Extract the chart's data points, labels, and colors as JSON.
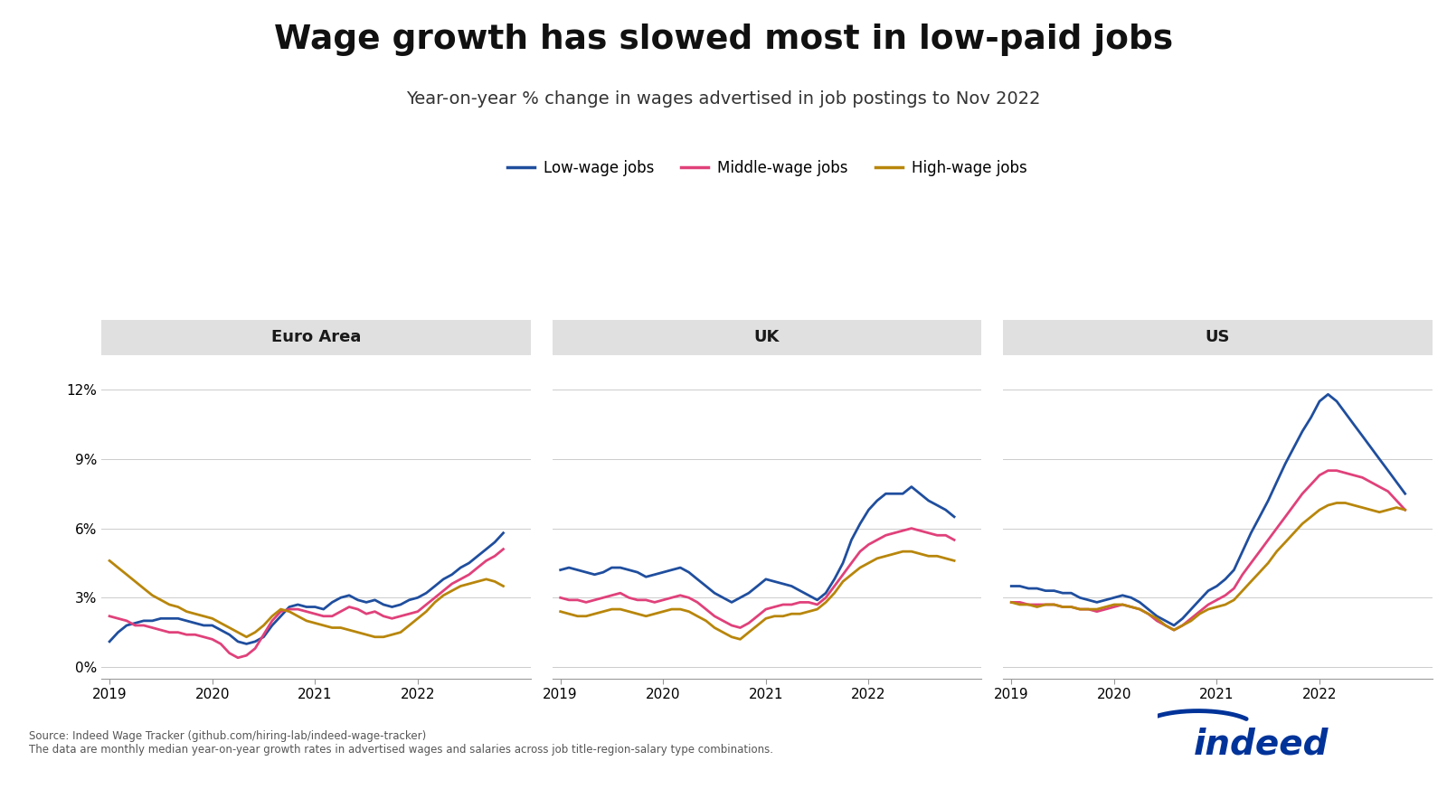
{
  "title": "Wage growth has slowed most in low-paid jobs",
  "subtitle": "Year-on-year % change in wages advertised in job postings to Nov 2022",
  "source_line1": "Source: Indeed Wage Tracker (github.com/hiring-lab/indeed-wage-tracker)",
  "source_line2": "The data are monthly median year-on-year growth rates in advertised wages and salaries across job title-region-salary type combinations.",
  "legend_labels": [
    "Low-wage jobs",
    "Middle-wage jobs",
    "High-wage jobs"
  ],
  "colors": {
    "low": "#1f4e9e",
    "middle": "#e0417a",
    "high": "#b8860b"
  },
  "panels": [
    "Euro Area",
    "UK",
    "US"
  ],
  "ylim": [
    -0.5,
    13.5
  ],
  "yticks": [
    0,
    3,
    6,
    9,
    12
  ],
  "ytick_labels": [
    "0%",
    "3%",
    "6%",
    "9%",
    "12%"
  ],
  "background_color": "#ffffff",
  "panel_header_color": "#e0e0e0",
  "euro_area": {
    "x": [
      2019.0,
      2019.083,
      2019.167,
      2019.25,
      2019.333,
      2019.417,
      2019.5,
      2019.583,
      2019.667,
      2019.75,
      2019.833,
      2019.917,
      2020.0,
      2020.083,
      2020.167,
      2020.25,
      2020.333,
      2020.417,
      2020.5,
      2020.583,
      2020.667,
      2020.75,
      2020.833,
      2020.917,
      2021.0,
      2021.083,
      2021.167,
      2021.25,
      2021.333,
      2021.417,
      2021.5,
      2021.583,
      2021.667,
      2021.75,
      2021.833,
      2021.917,
      2022.0,
      2022.083,
      2022.167,
      2022.25,
      2022.333,
      2022.417,
      2022.5,
      2022.583,
      2022.667,
      2022.75,
      2022.833
    ],
    "low": [
      1.1,
      1.5,
      1.8,
      1.9,
      2.0,
      2.0,
      2.1,
      2.1,
      2.1,
      2.0,
      1.9,
      1.8,
      1.8,
      1.6,
      1.4,
      1.1,
      1.0,
      1.1,
      1.3,
      1.8,
      2.2,
      2.6,
      2.7,
      2.6,
      2.6,
      2.5,
      2.8,
      3.0,
      3.1,
      2.9,
      2.8,
      2.9,
      2.7,
      2.6,
      2.7,
      2.9,
      3.0,
      3.2,
      3.5,
      3.8,
      4.0,
      4.3,
      4.5,
      4.8,
      5.1,
      5.4,
      5.8
    ],
    "middle": [
      2.2,
      2.1,
      2.0,
      1.8,
      1.8,
      1.7,
      1.6,
      1.5,
      1.5,
      1.4,
      1.4,
      1.3,
      1.2,
      1.0,
      0.6,
      0.4,
      0.5,
      0.8,
      1.4,
      2.0,
      2.4,
      2.5,
      2.5,
      2.4,
      2.3,
      2.2,
      2.2,
      2.4,
      2.6,
      2.5,
      2.3,
      2.4,
      2.2,
      2.1,
      2.2,
      2.3,
      2.4,
      2.7,
      3.0,
      3.3,
      3.6,
      3.8,
      4.0,
      4.3,
      4.6,
      4.8,
      5.1
    ],
    "high": [
      4.6,
      4.3,
      4.0,
      3.7,
      3.4,
      3.1,
      2.9,
      2.7,
      2.6,
      2.4,
      2.3,
      2.2,
      2.1,
      1.9,
      1.7,
      1.5,
      1.3,
      1.5,
      1.8,
      2.2,
      2.5,
      2.4,
      2.2,
      2.0,
      1.9,
      1.8,
      1.7,
      1.7,
      1.6,
      1.5,
      1.4,
      1.3,
      1.3,
      1.4,
      1.5,
      1.8,
      2.1,
      2.4,
      2.8,
      3.1,
      3.3,
      3.5,
      3.6,
      3.7,
      3.8,
      3.7,
      3.5
    ]
  },
  "uk": {
    "x": [
      2019.0,
      2019.083,
      2019.167,
      2019.25,
      2019.333,
      2019.417,
      2019.5,
      2019.583,
      2019.667,
      2019.75,
      2019.833,
      2019.917,
      2020.0,
      2020.083,
      2020.167,
      2020.25,
      2020.333,
      2020.417,
      2020.5,
      2020.583,
      2020.667,
      2020.75,
      2020.833,
      2020.917,
      2021.0,
      2021.083,
      2021.167,
      2021.25,
      2021.333,
      2021.417,
      2021.5,
      2021.583,
      2021.667,
      2021.75,
      2021.833,
      2021.917,
      2022.0,
      2022.083,
      2022.167,
      2022.25,
      2022.333,
      2022.417,
      2022.5,
      2022.583,
      2022.667,
      2022.75,
      2022.833
    ],
    "low": [
      4.2,
      4.3,
      4.2,
      4.1,
      4.0,
      4.1,
      4.3,
      4.3,
      4.2,
      4.1,
      3.9,
      4.0,
      4.1,
      4.2,
      4.3,
      4.1,
      3.8,
      3.5,
      3.2,
      3.0,
      2.8,
      3.0,
      3.2,
      3.5,
      3.8,
      3.7,
      3.6,
      3.5,
      3.3,
      3.1,
      2.9,
      3.2,
      3.8,
      4.5,
      5.5,
      6.2,
      6.8,
      7.2,
      7.5,
      7.5,
      7.5,
      7.8,
      7.5,
      7.2,
      7.0,
      6.8,
      6.5
    ],
    "middle": [
      3.0,
      2.9,
      2.9,
      2.8,
      2.9,
      3.0,
      3.1,
      3.2,
      3.0,
      2.9,
      2.9,
      2.8,
      2.9,
      3.0,
      3.1,
      3.0,
      2.8,
      2.5,
      2.2,
      2.0,
      1.8,
      1.7,
      1.9,
      2.2,
      2.5,
      2.6,
      2.7,
      2.7,
      2.8,
      2.8,
      2.7,
      3.0,
      3.5,
      4.0,
      4.5,
      5.0,
      5.3,
      5.5,
      5.7,
      5.8,
      5.9,
      6.0,
      5.9,
      5.8,
      5.7,
      5.7,
      5.5
    ],
    "high": [
      2.4,
      2.3,
      2.2,
      2.2,
      2.3,
      2.4,
      2.5,
      2.5,
      2.4,
      2.3,
      2.2,
      2.3,
      2.4,
      2.5,
      2.5,
      2.4,
      2.2,
      2.0,
      1.7,
      1.5,
      1.3,
      1.2,
      1.5,
      1.8,
      2.1,
      2.2,
      2.2,
      2.3,
      2.3,
      2.4,
      2.5,
      2.8,
      3.2,
      3.7,
      4.0,
      4.3,
      4.5,
      4.7,
      4.8,
      4.9,
      5.0,
      5.0,
      4.9,
      4.8,
      4.8,
      4.7,
      4.6
    ]
  },
  "us": {
    "x": [
      2019.0,
      2019.083,
      2019.167,
      2019.25,
      2019.333,
      2019.417,
      2019.5,
      2019.583,
      2019.667,
      2019.75,
      2019.833,
      2019.917,
      2020.0,
      2020.083,
      2020.167,
      2020.25,
      2020.333,
      2020.417,
      2020.5,
      2020.583,
      2020.667,
      2020.75,
      2020.833,
      2020.917,
      2021.0,
      2021.083,
      2021.167,
      2021.25,
      2021.333,
      2021.417,
      2021.5,
      2021.583,
      2021.667,
      2021.75,
      2021.833,
      2021.917,
      2022.0,
      2022.083,
      2022.167,
      2022.25,
      2022.333,
      2022.417,
      2022.5,
      2022.583,
      2022.667,
      2022.75,
      2022.833
    ],
    "low": [
      3.5,
      3.5,
      3.4,
      3.4,
      3.3,
      3.3,
      3.2,
      3.2,
      3.0,
      2.9,
      2.8,
      2.9,
      3.0,
      3.1,
      3.0,
      2.8,
      2.5,
      2.2,
      2.0,
      1.8,
      2.1,
      2.5,
      2.9,
      3.3,
      3.5,
      3.8,
      4.2,
      5.0,
      5.8,
      6.5,
      7.2,
      8.0,
      8.8,
      9.5,
      10.2,
      10.8,
      11.5,
      11.8,
      11.5,
      11.0,
      10.5,
      10.0,
      9.5,
      9.0,
      8.5,
      8.0,
      7.5
    ],
    "middle": [
      2.8,
      2.8,
      2.7,
      2.7,
      2.7,
      2.7,
      2.6,
      2.6,
      2.5,
      2.5,
      2.4,
      2.5,
      2.6,
      2.7,
      2.6,
      2.5,
      2.3,
      2.0,
      1.8,
      1.6,
      1.8,
      2.1,
      2.4,
      2.7,
      2.9,
      3.1,
      3.4,
      4.0,
      4.5,
      5.0,
      5.5,
      6.0,
      6.5,
      7.0,
      7.5,
      7.9,
      8.3,
      8.5,
      8.5,
      8.4,
      8.3,
      8.2,
      8.0,
      7.8,
      7.6,
      7.2,
      6.8
    ],
    "high": [
      2.8,
      2.7,
      2.7,
      2.6,
      2.7,
      2.7,
      2.6,
      2.6,
      2.5,
      2.5,
      2.5,
      2.6,
      2.7,
      2.7,
      2.6,
      2.5,
      2.3,
      2.1,
      1.8,
      1.6,
      1.8,
      2.0,
      2.3,
      2.5,
      2.6,
      2.7,
      2.9,
      3.3,
      3.7,
      4.1,
      4.5,
      5.0,
      5.4,
      5.8,
      6.2,
      6.5,
      6.8,
      7.0,
      7.1,
      7.1,
      7.0,
      6.9,
      6.8,
      6.7,
      6.8,
      6.9,
      6.8
    ]
  }
}
